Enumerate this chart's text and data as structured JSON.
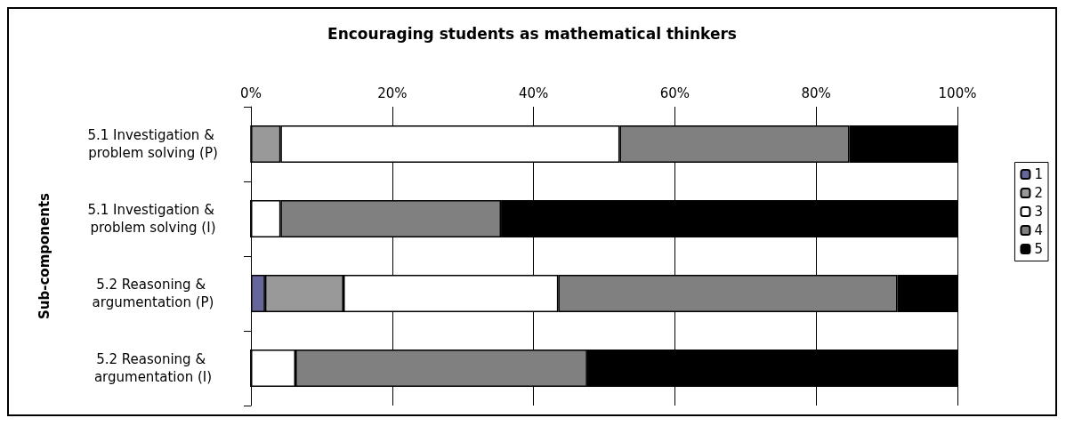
{
  "chart_data": {
    "type": "bar",
    "orientation": "horizontal",
    "stacked": true,
    "title": "Encouraging students as mathematical thinkers",
    "ylabel": "Sub-components",
    "categories": [
      "5.1 Investigation & problem solving (P)",
      "5.1 Investigation & problem solving (I)",
      "5.2 Reasoning & argumentation (P)",
      "5.2 Reasoning & argumentation (I)"
    ],
    "series": [
      {
        "name": "1",
        "color": "#666699",
        "values": [
          0,
          0,
          2.0,
          0
        ]
      },
      {
        "name": "2",
        "color": "#999999",
        "values": [
          4.2,
          0,
          11.1,
          0
        ]
      },
      {
        "name": "3",
        "color": "#ffffff",
        "values": [
          48.0,
          4.2,
          30.4,
          6.3
        ]
      },
      {
        "name": "4",
        "color": "#808080",
        "values": [
          32.5,
          31.2,
          48.0,
          41.3
        ]
      },
      {
        "name": "5",
        "color": "#000000",
        "values": [
          15.3,
          64.6,
          8.5,
          52.4
        ]
      }
    ],
    "xlim": [
      0,
      100
    ],
    "xticks": [
      {
        "value": 0,
        "label": "0%"
      },
      {
        "value": 20,
        "label": "20%"
      },
      {
        "value": 40,
        "label": "40%"
      },
      {
        "value": 60,
        "label": "60%"
      },
      {
        "value": 80,
        "label": "80%"
      },
      {
        "value": 100,
        "label": "100%"
      }
    ],
    "grid": "x",
    "legend": "right"
  }
}
